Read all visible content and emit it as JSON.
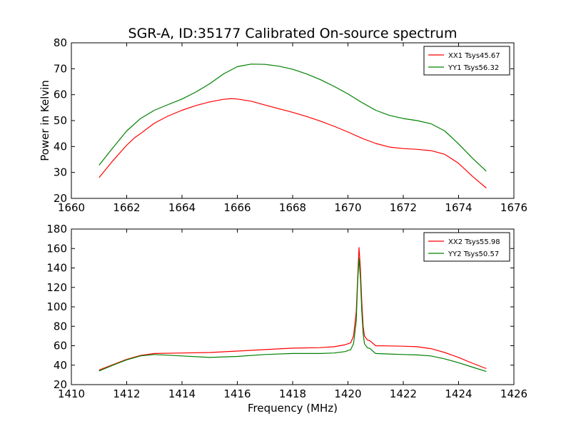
{
  "figure": {
    "title": "SGR-A, ID:35177 Calibrated On-source spectrum",
    "ylabel": "Power in Kelvin",
    "xlabel": "Frequency (MHz)"
  },
  "chart_data": [
    {
      "type": "line",
      "xlim": [
        1660,
        1676
      ],
      "ylim": [
        20,
        80
      ],
      "xticks": [
        "1660",
        "1662",
        "1664",
        "1666",
        "1668",
        "1670",
        "1672",
        "1674",
        "1676"
      ],
      "yticks": [
        "20",
        "30",
        "40",
        "50",
        "60",
        "70",
        "80"
      ],
      "grid": false,
      "legend_position": "top-right",
      "series": [
        {
          "name": "XX1 Tsys45.67",
          "color": "#ff0000",
          "x": [
            1661.0,
            1661.5,
            1662.0,
            1662.3,
            1662.5,
            1663.0,
            1663.5,
            1664.0,
            1664.5,
            1665.0,
            1665.5,
            1665.8,
            1666.0,
            1666.5,
            1667.0,
            1667.5,
            1668.0,
            1668.5,
            1669.0,
            1669.5,
            1670.0,
            1670.5,
            1671.0,
            1671.5,
            1672.0,
            1672.5,
            1673.0,
            1673.5,
            1674.0,
            1674.5,
            1675.0
          ],
          "values": [
            28.0,
            34.5,
            40.5,
            43.5,
            45.0,
            49.0,
            51.8,
            54.0,
            55.8,
            57.2,
            58.2,
            58.5,
            58.3,
            57.5,
            56.0,
            54.6,
            53.2,
            51.6,
            49.8,
            47.8,
            45.6,
            43.2,
            41.2,
            39.8,
            39.2,
            38.9,
            38.4,
            37.0,
            33.5,
            28.5,
            24.0
          ]
        },
        {
          "name": "YY1 Tsys56.32",
          "color": "#008000",
          "x": [
            1661.0,
            1661.5,
            1662.0,
            1662.5,
            1663.0,
            1663.5,
            1664.0,
            1664.5,
            1665.0,
            1665.5,
            1666.0,
            1666.5,
            1667.0,
            1667.5,
            1668.0,
            1668.5,
            1669.0,
            1669.5,
            1670.0,
            1670.5,
            1671.0,
            1671.5,
            1672.0,
            1672.5,
            1673.0,
            1673.5,
            1674.0,
            1674.5,
            1675.0
          ],
          "values": [
            32.8,
            39.5,
            46.0,
            50.8,
            54.0,
            56.2,
            58.3,
            61.0,
            64.2,
            68.0,
            70.8,
            71.8,
            71.7,
            71.0,
            69.8,
            68.0,
            65.8,
            63.2,
            60.3,
            57.0,
            54.0,
            52.0,
            50.8,
            50.0,
            48.8,
            46.0,
            41.0,
            35.5,
            30.5
          ]
        }
      ]
    },
    {
      "type": "line",
      "xlim": [
        1410,
        1426
      ],
      "ylim": [
        20,
        180
      ],
      "xticks": [
        "1410",
        "1412",
        "1414",
        "1416",
        "1418",
        "1420",
        "1422",
        "1424",
        "1426"
      ],
      "yticks": [
        "20",
        "40",
        "60",
        "80",
        "100",
        "120",
        "140",
        "160",
        "180"
      ],
      "grid": false,
      "legend_position": "top-right",
      "series": [
        {
          "name": "XX2 Tsys55.98",
          "color": "#ff0000",
          "x": [
            1411.0,
            1411.5,
            1412.0,
            1412.5,
            1413.0,
            1414.0,
            1415.0,
            1416.0,
            1417.0,
            1418.0,
            1419.0,
            1419.5,
            1419.9,
            1420.1,
            1420.2,
            1420.3,
            1420.35,
            1420.4,
            1420.45,
            1420.5,
            1420.55,
            1420.6,
            1420.7,
            1420.8,
            1421.0,
            1421.5,
            1422.0,
            1422.5,
            1423.0,
            1423.5,
            1424.0,
            1424.5,
            1425.0
          ],
          "values": [
            35.0,
            40.5,
            46.0,
            50.0,
            52.0,
            52.5,
            53.0,
            54.5,
            56.0,
            57.5,
            58.0,
            59.0,
            61.0,
            63.0,
            70.0,
            95.0,
            130.0,
            161.0,
            140.0,
            105.0,
            80.0,
            70.0,
            66.0,
            65.0,
            60.0,
            59.8,
            59.5,
            59.0,
            57.0,
            53.0,
            48.0,
            42.0,
            36.5
          ]
        },
        {
          "name": "YY2 Tsys50.57",
          "color": "#008000",
          "x": [
            1411.0,
            1411.5,
            1412.0,
            1412.5,
            1413.0,
            1414.0,
            1415.0,
            1416.0,
            1417.0,
            1418.0,
            1419.0,
            1419.5,
            1419.9,
            1420.1,
            1420.2,
            1420.3,
            1420.35,
            1420.4,
            1420.45,
            1420.5,
            1420.55,
            1420.6,
            1420.7,
            1420.8,
            1421.0,
            1421.5,
            1422.0,
            1422.5,
            1423.0,
            1423.5,
            1424.0,
            1424.5,
            1425.0
          ],
          "values": [
            34.0,
            40.0,
            45.5,
            49.5,
            51.0,
            49.5,
            48.0,
            49.0,
            51.0,
            52.0,
            52.0,
            52.5,
            54.0,
            56.0,
            62.0,
            85.0,
            125.0,
            150.0,
            130.0,
            95.0,
            72.0,
            62.0,
            58.0,
            57.0,
            52.0,
            51.5,
            51.0,
            50.5,
            49.5,
            46.5,
            42.5,
            38.0,
            33.5
          ]
        }
      ]
    }
  ]
}
